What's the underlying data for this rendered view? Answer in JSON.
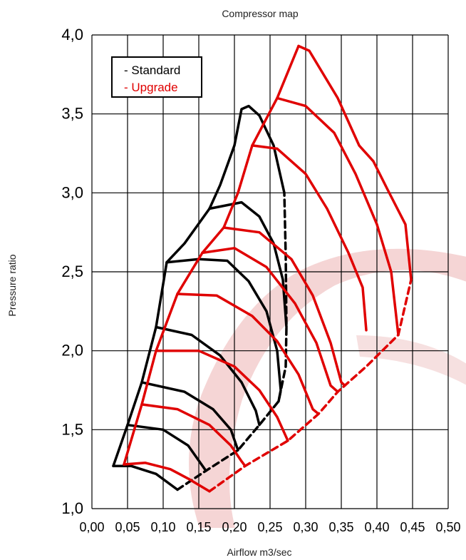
{
  "chart_data": {
    "type": "line",
    "title": "Compressor map",
    "xlabel": "Airflow m3/sec",
    "ylabel": "Pressure ratio",
    "xlim": [
      0,
      0.5
    ],
    "ylim": [
      1.0,
      4.0
    ],
    "x_ticks": [
      "0,00",
      "0,05",
      "0,10",
      "0,15",
      "0,20",
      "0,25",
      "0,30",
      "0,35",
      "0,40",
      "0,45",
      "0,50"
    ],
    "y_ticks": [
      "1,0",
      "1,5",
      "2,0",
      "2,5",
      "3,0",
      "3,5",
      "4,0"
    ],
    "grid": true,
    "legend_position": "top-left",
    "legend": [
      {
        "label": "- Standard",
        "color": "#000000"
      },
      {
        "label": "- Upgrade",
        "color": "#e00000"
      }
    ],
    "series": [
      {
        "name": "- Standard",
        "color": "#000000",
        "surge_line": [
          [
            0.03,
            1.27
          ],
          [
            0.05,
            1.53
          ],
          [
            0.07,
            1.8
          ],
          [
            0.09,
            2.15
          ],
          [
            0.105,
            2.56
          ],
          [
            0.13,
            2.68
          ],
          [
            0.165,
            2.9
          ],
          [
            0.18,
            3.05
          ],
          [
            0.2,
            3.3
          ],
          [
            0.21,
            3.53
          ],
          [
            0.22,
            3.55
          ],
          [
            0.235,
            3.49
          ],
          [
            0.255,
            3.3
          ],
          [
            0.27,
            3.0
          ]
        ],
        "speed_lines": [
          [
            [
              0.03,
              1.27
            ],
            [
              0.055,
              1.27
            ],
            [
              0.09,
              1.22
            ],
            [
              0.12,
              1.12
            ]
          ],
          [
            [
              0.05,
              1.53
            ],
            [
              0.1,
              1.5
            ],
            [
              0.135,
              1.4
            ],
            [
              0.16,
              1.24
            ]
          ],
          [
            [
              0.07,
              1.8
            ],
            [
              0.13,
              1.74
            ],
            [
              0.17,
              1.63
            ],
            [
              0.195,
              1.5
            ],
            [
              0.205,
              1.37
            ]
          ],
          [
            [
              0.09,
              2.15
            ],
            [
              0.14,
              2.1
            ],
            [
              0.18,
              1.97
            ],
            [
              0.21,
              1.8
            ],
            [
              0.23,
              1.62
            ],
            [
              0.235,
              1.53
            ]
          ],
          [
            [
              0.105,
              2.56
            ],
            [
              0.15,
              2.58
            ],
            [
              0.19,
              2.57
            ],
            [
              0.22,
              2.44
            ],
            [
              0.245,
              2.25
            ],
            [
              0.26,
              2.0
            ],
            [
              0.265,
              1.75
            ],
            [
              0.262,
              1.68
            ]
          ],
          [
            [
              0.165,
              2.9
            ],
            [
              0.21,
              2.94
            ],
            [
              0.235,
              2.85
            ],
            [
              0.255,
              2.68
            ],
            [
              0.268,
              2.45
            ],
            [
              0.273,
              2.15
            ]
          ]
        ],
        "choke_line": [
          [
            0.12,
            1.12
          ],
          [
            0.16,
            1.24
          ],
          [
            0.205,
            1.37
          ],
          [
            0.235,
            1.53
          ],
          [
            0.262,
            1.68
          ],
          [
            0.272,
            1.9
          ],
          [
            0.273,
            2.15
          ],
          [
            0.272,
            2.6
          ],
          [
            0.27,
            3.0
          ]
        ]
      },
      {
        "name": "- Upgrade",
        "color": "#e00000",
        "surge_line": [
          [
            0.045,
            1.28
          ],
          [
            0.07,
            1.66
          ],
          [
            0.09,
            2.0
          ],
          [
            0.12,
            2.36
          ],
          [
            0.155,
            2.62
          ],
          [
            0.185,
            2.78
          ],
          [
            0.205,
            3.0
          ],
          [
            0.225,
            3.3
          ],
          [
            0.26,
            3.6
          ],
          [
            0.29,
            3.93
          ]
        ],
        "top_curve": [
          [
            0.29,
            3.93
          ],
          [
            0.305,
            3.9
          ],
          [
            0.345,
            3.6
          ],
          [
            0.375,
            3.3
          ],
          [
            0.395,
            3.2
          ],
          [
            0.415,
            3.02
          ],
          [
            0.44,
            2.8
          ],
          [
            0.448,
            2.45
          ]
        ],
        "speed_lines": [
          [
            [
              0.045,
              1.28
            ],
            [
              0.075,
              1.29
            ],
            [
              0.11,
              1.25
            ],
            [
              0.135,
              1.19
            ],
            [
              0.165,
              1.11
            ]
          ],
          [
            [
              0.07,
              1.66
            ],
            [
              0.12,
              1.63
            ],
            [
              0.165,
              1.53
            ],
            [
              0.195,
              1.4
            ],
            [
              0.21,
              1.3
            ],
            [
              0.215,
              1.27
            ]
          ],
          [
            [
              0.09,
              2.0
            ],
            [
              0.15,
              2.0
            ],
            [
              0.2,
              1.9
            ],
            [
              0.235,
              1.75
            ],
            [
              0.26,
              1.58
            ],
            [
              0.275,
              1.43
            ]
          ],
          [
            [
              0.12,
              2.36
            ],
            [
              0.175,
              2.35
            ],
            [
              0.225,
              2.22
            ],
            [
              0.26,
              2.06
            ],
            [
              0.29,
              1.85
            ],
            [
              0.31,
              1.63
            ],
            [
              0.318,
              1.6
            ]
          ],
          [
            [
              0.155,
              2.62
            ],
            [
              0.2,
              2.65
            ],
            [
              0.245,
              2.53
            ],
            [
              0.285,
              2.3
            ],
            [
              0.315,
              2.05
            ],
            [
              0.335,
              1.78
            ],
            [
              0.345,
              1.74
            ]
          ],
          [
            [
              0.185,
              2.78
            ],
            [
              0.235,
              2.75
            ],
            [
              0.28,
              2.58
            ],
            [
              0.31,
              2.35
            ],
            [
              0.335,
              2.05
            ],
            [
              0.35,
              1.8
            ],
            [
              0.355,
              1.78
            ]
          ],
          [
            [
              0.225,
              3.3
            ],
            [
              0.26,
              3.28
            ],
            [
              0.3,
              3.12
            ],
            [
              0.33,
              2.9
            ],
            [
              0.36,
              2.62
            ],
            [
              0.38,
              2.4
            ],
            [
              0.385,
              2.13
            ]
          ],
          [
            [
              0.26,
              3.6
            ],
            [
              0.3,
              3.55
            ],
            [
              0.34,
              3.38
            ],
            [
              0.37,
              3.12
            ],
            [
              0.4,
              2.8
            ],
            [
              0.42,
              2.5
            ],
            [
              0.43,
              2.1
            ]
          ]
        ],
        "choke_line": [
          [
            0.165,
            1.11
          ],
          [
            0.215,
            1.27
          ],
          [
            0.275,
            1.43
          ],
          [
            0.318,
            1.6
          ],
          [
            0.345,
            1.74
          ],
          [
            0.385,
            1.9
          ],
          [
            0.43,
            2.1
          ],
          [
            0.448,
            2.45
          ]
        ]
      }
    ]
  }
}
